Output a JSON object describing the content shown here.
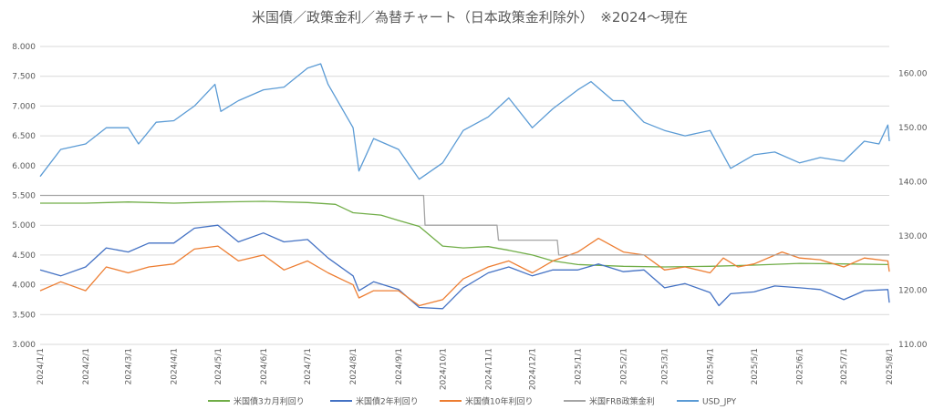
{
  "chart_data": {
    "type": "line",
    "title": "米国債／政策金利／為替チャート（日本政策金利除外）　※2024～現在",
    "left_axis": {
      "ylim": [
        3.0,
        8.0
      ],
      "ticks": [
        "3.000",
        "3.500",
        "4.000",
        "4.500",
        "5.000",
        "5.500",
        "6.000",
        "6.500",
        "7.000",
        "7.500",
        "8.000"
      ]
    },
    "right_axis": {
      "ylim": [
        110.0,
        165.0
      ],
      "ticks": [
        "110.00",
        "120.00",
        "130.00",
        "140.00",
        "150.00",
        "160.00"
      ]
    },
    "x_ticks": [
      "2024/1/1",
      "2024/2/1",
      "2024/3/1",
      "2024/4/1",
      "2024/5/1",
      "2024/6/1",
      "2024/7/1",
      "2024/8/1",
      "2024/9/1",
      "2024/10/1",
      "2024/11/1",
      "2024/12/1",
      "2025/1/1",
      "2025/2/1",
      "2025/3/1",
      "2025/4/1",
      "2025/5/1",
      "2025/6/1",
      "2025/7/1",
      "2025/8/1"
    ],
    "grid": true,
    "legend_position": "bottom",
    "series": [
      {
        "name": "米国債3カ月利回り",
        "color": "#70ad47",
        "axis": "left",
        "points": [
          [
            "2024/1/1",
            5.37
          ],
          [
            "2024/2/1",
            5.37
          ],
          [
            "2024/3/1",
            5.39
          ],
          [
            "2024/4/1",
            5.37
          ],
          [
            "2024/5/1",
            5.39
          ],
          [
            "2024/6/1",
            5.4
          ],
          [
            "2024/7/1",
            5.38
          ],
          [
            "2024/7/20",
            5.35
          ],
          [
            "2024/8/1",
            5.21
          ],
          [
            "2024/8/20",
            5.17
          ],
          [
            "2024/9/1",
            5.08
          ],
          [
            "2024/9/15",
            4.98
          ],
          [
            "2024/10/1",
            4.65
          ],
          [
            "2024/10/15",
            4.62
          ],
          [
            "2024/11/1",
            4.64
          ],
          [
            "2024/11/15",
            4.58
          ],
          [
            "2024/12/1",
            4.5
          ],
          [
            "2024/12/15",
            4.4
          ],
          [
            "2025/1/1",
            4.34
          ],
          [
            "2025/2/1",
            4.31
          ],
          [
            "2025/3/1",
            4.3
          ],
          [
            "2025/4/1",
            4.31
          ],
          [
            "2025/5/1",
            4.33
          ],
          [
            "2025/6/1",
            4.36
          ],
          [
            "2025/7/1",
            4.35
          ],
          [
            "2025/7/31",
            4.34
          ]
        ]
      },
      {
        "name": "米国債2年利回り",
        "color": "#4472c4",
        "axis": "left",
        "points": [
          [
            "2024/1/1",
            4.25
          ],
          [
            "2024/1/15",
            4.15
          ],
          [
            "2024/2/1",
            4.3
          ],
          [
            "2024/2/15",
            4.62
          ],
          [
            "2024/3/1",
            4.55
          ],
          [
            "2024/3/15",
            4.7
          ],
          [
            "2024/4/1",
            4.7
          ],
          [
            "2024/4/15",
            4.95
          ],
          [
            "2024/5/1",
            5.0
          ],
          [
            "2024/5/15",
            4.72
          ],
          [
            "2024/6/1",
            4.87
          ],
          [
            "2024/6/15",
            4.72
          ],
          [
            "2024/7/1",
            4.76
          ],
          [
            "2024/7/15",
            4.45
          ],
          [
            "2024/8/1",
            4.15
          ],
          [
            "2024/8/5",
            3.9
          ],
          [
            "2024/8/15",
            4.05
          ],
          [
            "2024/9/1",
            3.92
          ],
          [
            "2024/9/15",
            3.62
          ],
          [
            "2024/10/1",
            3.6
          ],
          [
            "2024/10/15",
            3.95
          ],
          [
            "2024/11/1",
            4.2
          ],
          [
            "2024/11/15",
            4.3
          ],
          [
            "2024/12/1",
            4.15
          ],
          [
            "2024/12/15",
            4.25
          ],
          [
            "2025/1/1",
            4.25
          ],
          [
            "2025/1/15",
            4.35
          ],
          [
            "2025/2/1",
            4.22
          ],
          [
            "2025/2/15",
            4.25
          ],
          [
            "2025/3/1",
            3.95
          ],
          [
            "2025/3/15",
            4.02
          ],
          [
            "2025/4/1",
            3.87
          ],
          [
            "2025/4/7",
            3.65
          ],
          [
            "2025/4/15",
            3.85
          ],
          [
            "2025/5/1",
            3.88
          ],
          [
            "2025/5/15",
            3.98
          ],
          [
            "2025/6/1",
            3.95
          ],
          [
            "2025/6/15",
            3.92
          ],
          [
            "2025/7/1",
            3.75
          ],
          [
            "2025/7/15",
            3.9
          ],
          [
            "2025/7/31",
            3.92
          ],
          [
            "2025/8/1",
            3.7
          ]
        ]
      },
      {
        "name": "米国債10年利回り",
        "color": "#ed7d31",
        "axis": "left",
        "points": [
          [
            "2024/1/1",
            3.9
          ],
          [
            "2024/1/15",
            4.05
          ],
          [
            "2024/2/1",
            3.9
          ],
          [
            "2024/2/15",
            4.3
          ],
          [
            "2024/3/1",
            4.2
          ],
          [
            "2024/3/15",
            4.3
          ],
          [
            "2024/4/1",
            4.35
          ],
          [
            "2024/4/15",
            4.6
          ],
          [
            "2024/5/1",
            4.65
          ],
          [
            "2024/5/15",
            4.4
          ],
          [
            "2024/6/1",
            4.5
          ],
          [
            "2024/6/15",
            4.25
          ],
          [
            "2024/7/1",
            4.4
          ],
          [
            "2024/7/15",
            4.2
          ],
          [
            "2024/8/1",
            4.0
          ],
          [
            "2024/8/5",
            3.78
          ],
          [
            "2024/8/15",
            3.9
          ],
          [
            "2024/9/1",
            3.9
          ],
          [
            "2024/9/15",
            3.65
          ],
          [
            "2024/10/1",
            3.75
          ],
          [
            "2024/10/15",
            4.1
          ],
          [
            "2024/11/1",
            4.3
          ],
          [
            "2024/11/15",
            4.4
          ],
          [
            "2024/12/1",
            4.2
          ],
          [
            "2024/12/15",
            4.4
          ],
          [
            "2025/1/1",
            4.55
          ],
          [
            "2025/1/15",
            4.78
          ],
          [
            "2025/2/1",
            4.55
          ],
          [
            "2025/2/15",
            4.5
          ],
          [
            "2025/3/1",
            4.25
          ],
          [
            "2025/3/15",
            4.3
          ],
          [
            "2025/4/1",
            4.2
          ],
          [
            "2025/4/10",
            4.45
          ],
          [
            "2025/4/20",
            4.3
          ],
          [
            "2025/5/1",
            4.35
          ],
          [
            "2025/5/20",
            4.55
          ],
          [
            "2025/6/1",
            4.45
          ],
          [
            "2025/6/15",
            4.42
          ],
          [
            "2025/7/1",
            4.3
          ],
          [
            "2025/7/15",
            4.45
          ],
          [
            "2025/7/31",
            4.4
          ],
          [
            "2025/8/1",
            4.22
          ]
        ]
      },
      {
        "name": "米国FRB政策金利",
        "color": "#a5a5a5",
        "axis": "left",
        "points": [
          [
            "2024/1/1",
            5.5
          ],
          [
            "2024/9/18",
            5.5
          ],
          [
            "2024/9/19",
            5.0
          ],
          [
            "2024/11/7",
            5.0
          ],
          [
            "2024/11/8",
            4.75
          ],
          [
            "2024/12/18",
            4.75
          ],
          [
            "2024/12/19",
            4.5
          ],
          [
            "2025/8/1",
            4.5
          ]
        ]
      },
      {
        "name": "USD_JPY",
        "color": "#5b9bd5",
        "axis": "right",
        "points": [
          [
            "2024/1/1",
            141.0
          ],
          [
            "2024/1/15",
            146.0
          ],
          [
            "2024/2/1",
            147.0
          ],
          [
            "2024/2/15",
            150.0
          ],
          [
            "2024/3/1",
            150.0
          ],
          [
            "2024/3/8",
            147.0
          ],
          [
            "2024/3/20",
            151.0
          ],
          [
            "2024/4/1",
            151.3
          ],
          [
            "2024/4/15",
            154.0
          ],
          [
            "2024/4/29",
            158.0
          ],
          [
            "2024/5/3",
            153.0
          ],
          [
            "2024/5/15",
            155.0
          ],
          [
            "2024/6/1",
            157.0
          ],
          [
            "2024/6/15",
            157.5
          ],
          [
            "2024/7/1",
            161.0
          ],
          [
            "2024/7/10",
            161.8
          ],
          [
            "2024/7/15",
            158.0
          ],
          [
            "2024/8/1",
            150.0
          ],
          [
            "2024/8/5",
            142.0
          ],
          [
            "2024/8/15",
            148.0
          ],
          [
            "2024/9/1",
            146.0
          ],
          [
            "2024/9/15",
            140.5
          ],
          [
            "2024/10/1",
            143.5
          ],
          [
            "2024/10/15",
            149.5
          ],
          [
            "2024/11/1",
            152.0
          ],
          [
            "2024/11/15",
            155.5
          ],
          [
            "2024/12/1",
            150.0
          ],
          [
            "2024/12/15",
            153.5
          ],
          [
            "2025/1/1",
            157.0
          ],
          [
            "2025/1/10",
            158.5
          ],
          [
            "2025/1/25",
            155.0
          ],
          [
            "2025/2/1",
            155.0
          ],
          [
            "2025/2/15",
            151.0
          ],
          [
            "2025/3/1",
            149.5
          ],
          [
            "2025/3/15",
            148.5
          ],
          [
            "2025/4/1",
            149.5
          ],
          [
            "2025/4/15",
            142.5
          ],
          [
            "2025/5/1",
            145.0
          ],
          [
            "2025/5/15",
            145.5
          ],
          [
            "2025/6/1",
            143.5
          ],
          [
            "2025/6/15",
            144.5
          ],
          [
            "2025/7/1",
            143.8
          ],
          [
            "2025/7/15",
            147.5
          ],
          [
            "2025/7/25",
            147.0
          ],
          [
            "2025/7/31",
            150.5
          ],
          [
            "2025/8/1",
            147.5
          ]
        ]
      }
    ]
  }
}
